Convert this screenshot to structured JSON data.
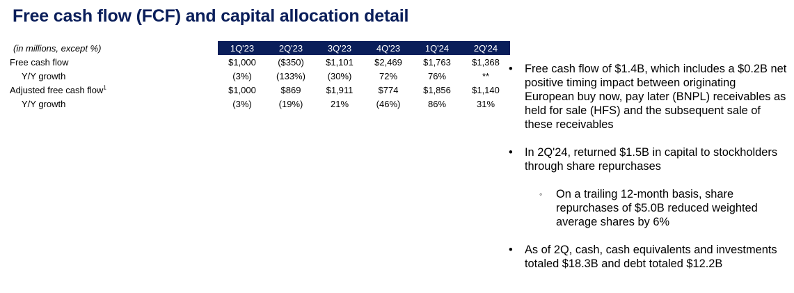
{
  "title": "Free cash flow (FCF) and capital allocation detail",
  "table": {
    "corner_label": "(in millions, except %)",
    "columns": [
      "1Q'23",
      "2Q'23",
      "3Q'23",
      "4Q'23",
      "1Q'24",
      "2Q'24"
    ],
    "rows": [
      {
        "label": "Free cash flow",
        "sup": "",
        "values": [
          "$1,000",
          "($350)",
          "$1,101",
          "$2,469",
          "$1,763",
          "$1,368"
        ]
      },
      {
        "label": "Y/Y growth",
        "sup": "",
        "values": [
          "(3%)",
          "(133%)",
          "(30%)",
          "72%",
          "76%",
          "**"
        ]
      },
      {
        "label": "Adjusted free cash flow",
        "sup": "1",
        "values": [
          "$1,000",
          "$869",
          "$1,911",
          "$774",
          "$1,856",
          "$1,140"
        ]
      },
      {
        "label": "Y/Y growth",
        "sup": "",
        "values": [
          "(3%)",
          "(19%)",
          "21%",
          "(46%)",
          "86%",
          "31%"
        ]
      }
    ]
  },
  "bullets": {
    "b1": "Free cash flow of $1.4B, which includes a $0.2B net positive timing impact between originating European buy now, pay later (BNPL) receivables as held for sale (HFS) and the subsequent sale of these receivables",
    "b2": "In 2Q'24, returned $1.5B in capital to stockholders through share repurchases",
    "b2_sub": "On a trailing 12-month basis, share repurchases of $5.0B reduced weighted average shares by 6%",
    "b3": "As of 2Q, cash, cash equivalents and investments totaled $18.3B and debt totaled $12.2B",
    "bullet_char": "•",
    "sub_bullet_char": "◦"
  },
  "colors": {
    "header_bg": "#0a1e5a",
    "title": "#0a1e5a"
  }
}
